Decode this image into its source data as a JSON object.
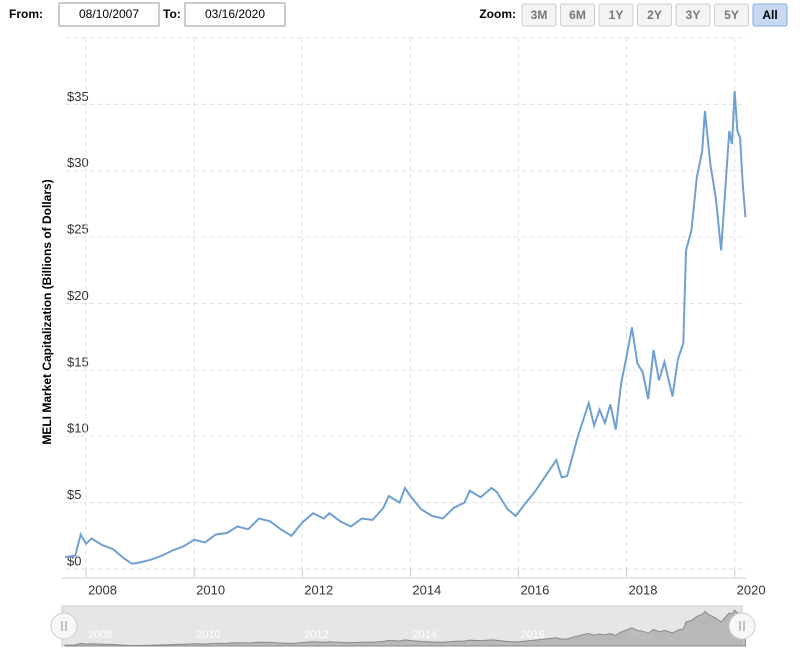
{
  "range_selector": {
    "from_label": "From:",
    "from": "08/10/2007",
    "to_label": "To:",
    "to": "03/16/2020",
    "zoom_label": "Zoom:",
    "buttons": [
      "3M",
      "6M",
      "1Y",
      "2Y",
      "3Y",
      "5Y",
      "All"
    ],
    "active": "All"
  },
  "chart_data": {
    "type": "line",
    "y_label": "MELI Market Capitalization (Billions of Dollars)",
    "x": [
      2007.61,
      2007.8,
      2007.9,
      2008.0,
      2008.1,
      2008.3,
      2008.5,
      2008.7,
      2008.85,
      2009.0,
      2009.2,
      2009.4,
      2009.6,
      2009.8,
      2010.0,
      2010.2,
      2010.4,
      2010.6,
      2010.8,
      2011.0,
      2011.2,
      2011.4,
      2011.6,
      2011.8,
      2012.0,
      2012.2,
      2012.4,
      2012.5,
      2012.7,
      2012.9,
      2013.1,
      2013.3,
      2013.5,
      2013.6,
      2013.8,
      2013.9,
      2014.0,
      2014.2,
      2014.4,
      2014.6,
      2014.8,
      2015.0,
      2015.1,
      2015.3,
      2015.5,
      2015.6,
      2015.8,
      2015.95,
      2016.1,
      2016.3,
      2016.5,
      2016.7,
      2016.8,
      2016.9,
      2017.1,
      2017.3,
      2017.4,
      2017.5,
      2017.6,
      2017.7,
      2017.8,
      2017.9,
      2018.0,
      2018.1,
      2018.2,
      2018.3,
      2018.4,
      2018.5,
      2018.6,
      2018.7,
      2018.85,
      2018.95,
      2019.05,
      2019.1,
      2019.2,
      2019.3,
      2019.4,
      2019.45,
      2019.55,
      2019.65,
      2019.75,
      2019.8,
      2019.9,
      2019.95,
      2020.0,
      2020.05,
      2020.1,
      2020.15,
      2020.2
    ],
    "series": [
      {
        "name": "MELI",
        "color": "#6fa0d2",
        "values": [
          0.9,
          1.0,
          2.6,
          1.9,
          2.3,
          1.8,
          1.5,
          0.8,
          0.4,
          0.5,
          0.7,
          1.0,
          1.4,
          1.7,
          2.2,
          2.0,
          2.6,
          2.7,
          3.2,
          3.0,
          3.8,
          3.6,
          3.0,
          2.5,
          3.5,
          4.2,
          3.8,
          4.2,
          3.6,
          3.2,
          3.8,
          3.7,
          4.6,
          5.5,
          5.0,
          6.1,
          5.5,
          4.5,
          4.0,
          3.8,
          4.6,
          5.0,
          5.9,
          5.4,
          6.1,
          5.8,
          4.5,
          4.0,
          4.8,
          5.8,
          7.0,
          8.2,
          6.9,
          7.0,
          10.0,
          12.5,
          10.8,
          12.0,
          11.0,
          12.4,
          10.5,
          14.0,
          16.0,
          18.2,
          15.5,
          14.8,
          12.8,
          16.5,
          14.2,
          15.6,
          13.0,
          15.8,
          17.0,
          24.0,
          25.5,
          29.5,
          31.5,
          34.5,
          30.5,
          28.0,
          24.0,
          27.0,
          33.0,
          32.0,
          36.0,
          33.0,
          32.5,
          29.0,
          26.5
        ]
      }
    ],
    "xlim": [
      2007.61,
      2020.21
    ],
    "xticks": [
      2008,
      2010,
      2012,
      2014,
      2016,
      2018,
      2020
    ],
    "ylim": [
      0,
      40
    ],
    "yticks": [
      {
        "value": 0,
        "label": "$0"
      },
      {
        "value": 5,
        "label": "$5"
      },
      {
        "value": 10,
        "label": "$10"
      },
      {
        "value": 15,
        "label": "$15"
      },
      {
        "value": 20,
        "label": "$20"
      },
      {
        "value": 25,
        "label": "$25"
      },
      {
        "value": 30,
        "label": "$30"
      },
      {
        "value": 35,
        "label": "$35"
      }
    ],
    "grid": true
  }
}
